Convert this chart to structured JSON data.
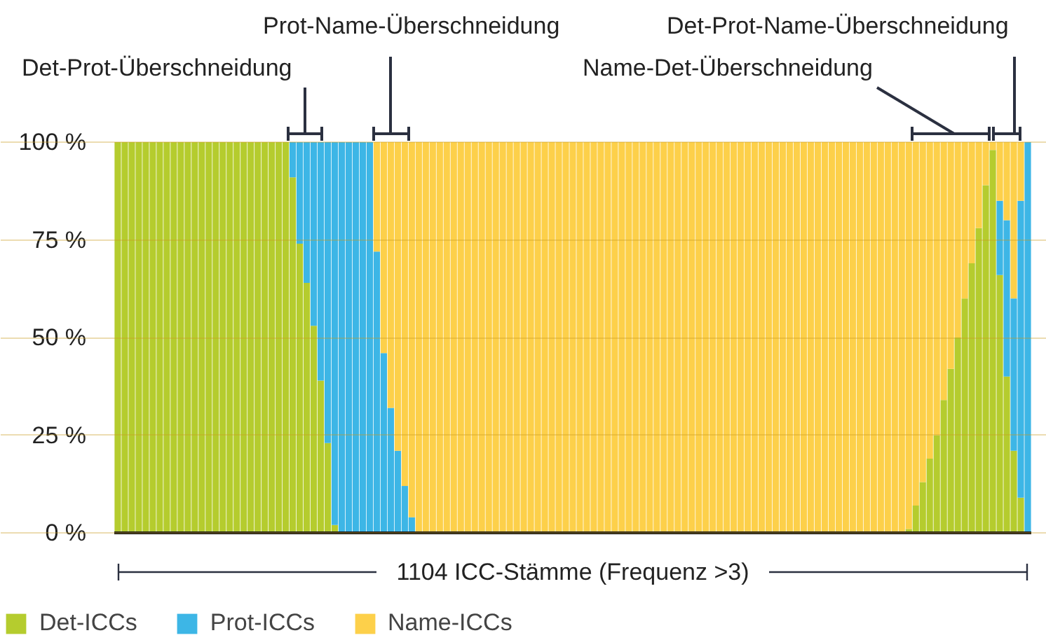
{
  "chart_data": {
    "type": "bar",
    "stacked": true,
    "categories": [
      null,
      null,
      null,
      null,
      null,
      null,
      null,
      null,
      null,
      null,
      null,
      null,
      null,
      null,
      null,
      null,
      null,
      null,
      null,
      null,
      null,
      null,
      null,
      null,
      null,
      null,
      null,
      null,
      null,
      null,
      null,
      null,
      null,
      null,
      null,
      null,
      null,
      null,
      null,
      null,
      null,
      null,
      null,
      null,
      null,
      null,
      null,
      null,
      null,
      null,
      null,
      null,
      null,
      null,
      null,
      null,
      null,
      null,
      null,
      null,
      null,
      null,
      null,
      null,
      null,
      null,
      null,
      null,
      null,
      null,
      null,
      null,
      null,
      null,
      null,
      null,
      null,
      null,
      null,
      null,
      null,
      null,
      null,
      null,
      null,
      null,
      null,
      null,
      null,
      null,
      null,
      null,
      null,
      null,
      null,
      null,
      null,
      null,
      null,
      null,
      null,
      null,
      null,
      null,
      null,
      null,
      null,
      null,
      null,
      null,
      null,
      null,
      null,
      null,
      null,
      null,
      null,
      null,
      null,
      null,
      null,
      null,
      null,
      null,
      null,
      null,
      null,
      null,
      null,
      null,
      null
    ],
    "series": [
      {
        "name": "Det-ICCs",
        "color": "#b5cc2e",
        "values": [
          100,
          100,
          100,
          100,
          100,
          100,
          100,
          100,
          100,
          100,
          100,
          100,
          100,
          100,
          100,
          100,
          100,
          100,
          100,
          100,
          100,
          100,
          100,
          100,
          100,
          91,
          74,
          64,
          53,
          39,
          23,
          2,
          0,
          0,
          0,
          0,
          0,
          0,
          0,
          0,
          0,
          0,
          0,
          0,
          0,
          0,
          0,
          0,
          0,
          0,
          0,
          0,
          0,
          0,
          0,
          0,
          0,
          0,
          0,
          0,
          0,
          0,
          0,
          0,
          0,
          0,
          0,
          0,
          0,
          0,
          0,
          0,
          0,
          0,
          0,
          0,
          0,
          0,
          0,
          0,
          0,
          0,
          0,
          0,
          0,
          0,
          0,
          0,
          0,
          0,
          0,
          0,
          0,
          0,
          0,
          0,
          0,
          0,
          0,
          0,
          0,
          0,
          0,
          0,
          0,
          0,
          0,
          0,
          0,
          0,
          0,
          0,
          0,
          1,
          7,
          13,
          19,
          25,
          34,
          42,
          50,
          60,
          69,
          78,
          89,
          98,
          66,
          40,
          21,
          9,
          0
        ]
      },
      {
        "name": "Prot-ICCs",
        "color": "#3db6e6",
        "values": [
          0,
          0,
          0,
          0,
          0,
          0,
          0,
          0,
          0,
          0,
          0,
          0,
          0,
          0,
          0,
          0,
          0,
          0,
          0,
          0,
          0,
          0,
          0,
          0,
          0,
          9,
          26,
          36,
          47,
          61,
          77,
          98,
          100,
          100,
          100,
          100,
          100,
          72,
          46,
          32,
          21,
          12,
          4,
          0,
          0,
          0,
          0,
          0,
          0,
          0,
          0,
          0,
          0,
          0,
          0,
          0,
          0,
          0,
          0,
          0,
          0,
          0,
          0,
          0,
          0,
          0,
          0,
          0,
          0,
          0,
          0,
          0,
          0,
          0,
          0,
          0,
          0,
          0,
          0,
          0,
          0,
          0,
          0,
          0,
          0,
          0,
          0,
          0,
          0,
          0,
          0,
          0,
          0,
          0,
          0,
          0,
          0,
          0,
          0,
          0,
          0,
          0,
          0,
          0,
          0,
          0,
          0,
          0,
          0,
          0,
          0,
          0,
          0,
          0,
          0,
          0,
          0,
          0,
          0,
          0,
          0,
          0,
          0,
          0,
          0,
          0,
          19,
          40,
          39,
          76,
          100
        ]
      },
      {
        "name": "Name-ICCs",
        "color": "#fdd04a",
        "values": [
          0,
          0,
          0,
          0,
          0,
          0,
          0,
          0,
          0,
          0,
          0,
          0,
          0,
          0,
          0,
          0,
          0,
          0,
          0,
          0,
          0,
          0,
          0,
          0,
          0,
          0,
          0,
          0,
          0,
          0,
          0,
          0,
          0,
          0,
          0,
          0,
          0,
          28,
          54,
          68,
          79,
          88,
          96,
          100,
          100,
          100,
          100,
          100,
          100,
          100,
          100,
          100,
          100,
          100,
          100,
          100,
          100,
          100,
          100,
          100,
          100,
          100,
          100,
          100,
          100,
          100,
          100,
          100,
          100,
          100,
          100,
          100,
          100,
          100,
          100,
          100,
          100,
          100,
          100,
          100,
          100,
          100,
          100,
          100,
          100,
          100,
          100,
          100,
          100,
          100,
          100,
          100,
          100,
          100,
          100,
          100,
          100,
          100,
          100,
          100,
          100,
          100,
          100,
          100,
          100,
          100,
          100,
          100,
          100,
          100,
          100,
          100,
          100,
          99,
          93,
          87,
          81,
          75,
          66,
          58,
          50,
          40,
          31,
          22,
          11,
          2,
          15,
          20,
          40,
          15,
          0
        ]
      }
    ],
    "ylim": [
      0,
      100
    ],
    "yticks": [
      {
        "value": 0,
        "label": "0 %"
      },
      {
        "value": 25,
        "label": "25 %"
      },
      {
        "value": 50,
        "label": "50 %"
      },
      {
        "value": 75,
        "label": "75 %"
      },
      {
        "value": 100,
        "label": "100 %"
      }
    ],
    "grid": "y",
    "xlabel": "1104 ICC-Stämme (Frequenz >3)",
    "annotations": [
      "Det-Prot-Überschneidung",
      "Prot-Name-Überschneidung",
      "Name-Det-Überschneidung",
      "Det-Prot-Name-Überschneidung"
    ],
    "legend": "bottom left",
    "tick_labels": "y"
  }
}
